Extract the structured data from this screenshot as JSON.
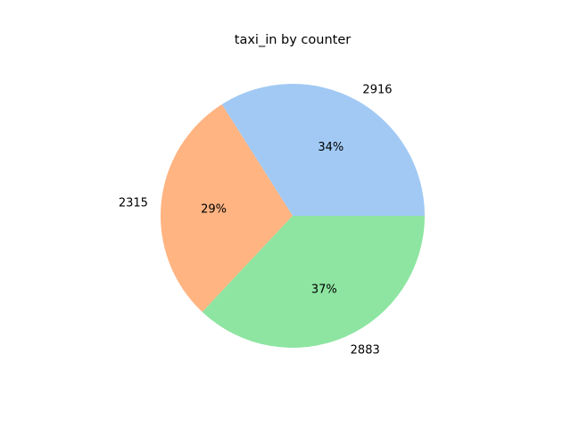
{
  "chart_data": {
    "type": "pie",
    "title": "taxi_in by counter",
    "start_angle": 0,
    "direction": "counterclockwise",
    "slices": [
      {
        "label": "2916",
        "value": 34,
        "pct_label": "34%",
        "color": "#a1c9f4"
      },
      {
        "label": "2315",
        "value": 29,
        "pct_label": "29%",
        "color": "#ffb482"
      },
      {
        "label": "2883",
        "value": 37,
        "pct_label": "37%",
        "color": "#8de5a1"
      }
    ]
  }
}
